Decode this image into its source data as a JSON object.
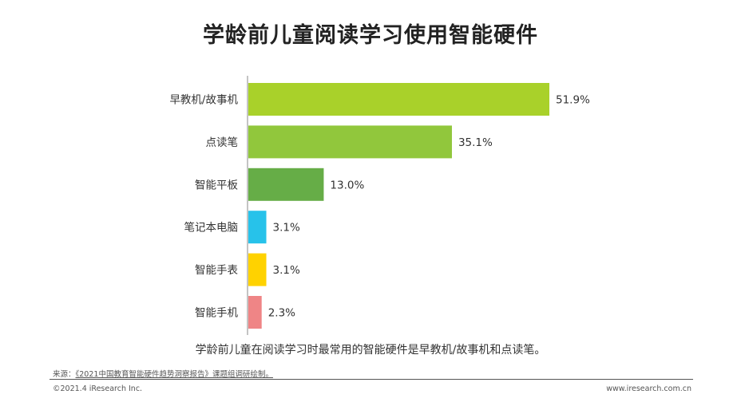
{
  "page": {
    "title": "学龄前儿童阅读学习使用智能硬件",
    "note": "学龄前儿童在阅读学习时最常用的智能硬件是早教机/故事机和点读笔。",
    "source_label": "来源：",
    "source_text": "《2021中国教育智能硬件趋势洞察报告》课题组调研绘制。",
    "copyright": "©2021.4 iResearch Inc.",
    "website": "www.iresearch.com.cn"
  },
  "chart_data": {
    "type": "bar",
    "orientation": "horizontal",
    "title": "学龄前儿童阅读学习使用智能硬件",
    "categories": [
      "早教机/故事机",
      "点读笔",
      "智能平板",
      "笔记本电脑",
      "智能手表",
      "智能手机"
    ],
    "values": [
      51.9,
      35.1,
      13.0,
      3.1,
      3.1,
      2.3
    ],
    "value_labels": [
      "51.9%",
      "35.1%",
      "13.0%",
      "3.1%",
      "3.1%",
      "2.3%"
    ],
    "colors": [
      "#a9d12a",
      "#91c73c",
      "#66ad47",
      "#27c2ea",
      "#ffd200",
      "#ef8586"
    ],
    "unit": "%",
    "xlim": [
      0,
      51.9
    ],
    "grid": false,
    "legend": "none"
  }
}
